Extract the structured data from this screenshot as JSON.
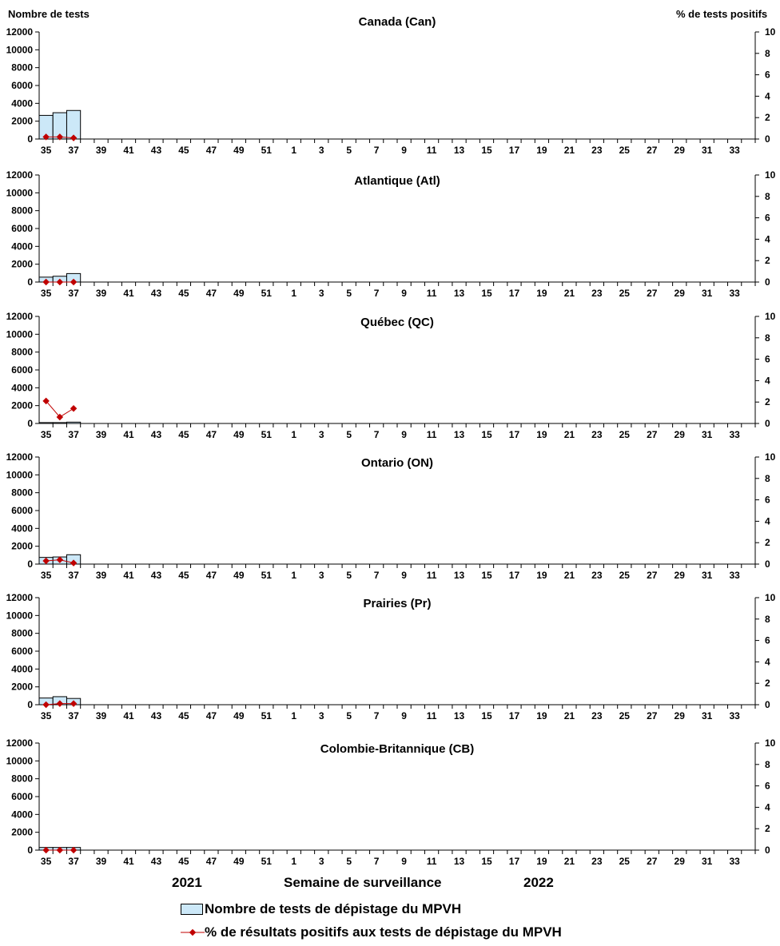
{
  "chart_data": {
    "type": "bar+line",
    "ylabel_left": "Nombre de tests",
    "ylabel_right": "% de tests positifs",
    "xlabel": "Semaine de surveillance",
    "year_labels": [
      "2021",
      "2022"
    ],
    "y_left_lim": [
      0,
      12000
    ],
    "y_left_ticks": [
      0,
      2000,
      4000,
      6000,
      8000,
      10000,
      12000
    ],
    "y_right_lim": [
      0,
      10
    ],
    "y_right_ticks": [
      0,
      2,
      4,
      6,
      8,
      10
    ],
    "weeks": [
      35,
      36,
      37,
      38,
      39,
      40,
      41,
      42,
      43,
      44,
      45,
      46,
      47,
      48,
      49,
      50,
      51,
      52,
      1,
      2,
      3,
      4,
      5,
      6,
      7,
      8,
      9,
      10,
      11,
      12,
      13,
      14,
      15,
      16,
      17,
      18,
      19,
      20,
      21,
      22,
      23,
      24,
      25,
      26,
      27,
      28,
      29,
      30,
      31,
      32,
      33,
      34
    ],
    "colors": {
      "bar": "#cce8f8",
      "line": "#c00000"
    },
    "legend": [
      "Nombre de tests de dépistage du MPVH",
      "% de résultats positifs aux tests de dépistage du MPVH"
    ],
    "panels": [
      {
        "title": "Canada (Can)",
        "tests": [
          2650,
          2950,
          3200
        ],
        "pct": [
          0.2,
          0.2,
          0.1
        ]
      },
      {
        "title": "Atlantique (Atl)",
        "tests": [
          550,
          650,
          950
        ],
        "pct": [
          0,
          0,
          0
        ]
      },
      {
        "title": "Québec (QC)",
        "tests": [
          100,
          100,
          150
        ],
        "pct": [
          2.1,
          0.6,
          1.4
        ]
      },
      {
        "title": "Ontario (ON)",
        "tests": [
          750,
          800,
          1050
        ],
        "pct": [
          0.3,
          0.4,
          0.1
        ]
      },
      {
        "title": "Prairies (Pr)",
        "tests": [
          750,
          900,
          700
        ],
        "pct": [
          0,
          0.1,
          0.1
        ]
      },
      {
        "title": "Colombie-Britannique (CB)",
        "tests": [
          300,
          300,
          300
        ],
        "pct": [
          0,
          0,
          0
        ]
      }
    ]
  }
}
